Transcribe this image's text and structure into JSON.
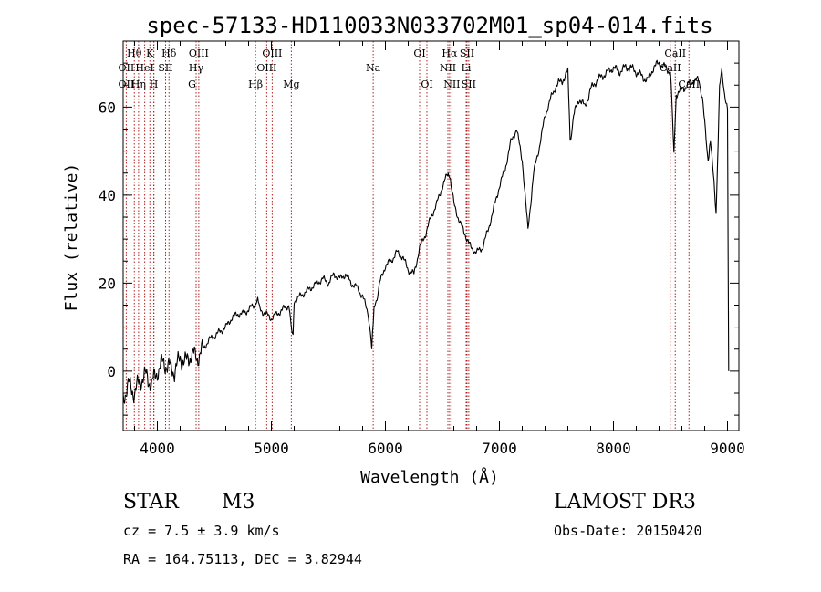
{
  "chart_data": {
    "type": "line",
    "title": "spec-57133-HD110033N033702M01_sp04-014.fits",
    "xlabel": "Wavelength (Å)",
    "ylabel": "Flux (relative)",
    "xlim": [
      3700,
      9100
    ],
    "ylim": [
      -13.5,
      75
    ],
    "xticks": [
      4000,
      5000,
      6000,
      7000,
      8000,
      9000
    ],
    "yticks": [
      0,
      20,
      40,
      60
    ],
    "series": [
      {
        "name": "flux",
        "color": "#000000",
        "x": [
          3700,
          3750,
          3800,
          3850,
          3900,
          3950,
          4000,
          4050,
          4100,
          4150,
          4200,
          4250,
          4300,
          4350,
          4400,
          4450,
          4500,
          4550,
          4600,
          4650,
          4700,
          4750,
          4800,
          4850,
          4880,
          4900,
          4950,
          5000,
          5050,
          5100,
          5150,
          5190,
          5200,
          5250,
          5300,
          5350,
          5400,
          5450,
          5500,
          5550,
          5600,
          5650,
          5700,
          5750,
          5800,
          5850,
          5880,
          5900,
          5920,
          5950,
          6000,
          6050,
          6100,
          6150,
          6200,
          6250,
          6300,
          6350,
          6400,
          6450,
          6500,
          6550,
          6570,
          6600,
          6650,
          6700,
          6750,
          6800,
          6850,
          6900,
          6950,
          7000,
          7050,
          7100,
          7150,
          7200,
          7250,
          7300,
          7350,
          7400,
          7450,
          7500,
          7550,
          7600,
          7620,
          7650,
          7700,
          7750,
          7800,
          7850,
          7900,
          7950,
          8000,
          8050,
          8100,
          8150,
          8200,
          8250,
          8300,
          8350,
          8400,
          8450,
          8500,
          8530,
          8550,
          8600,
          8650,
          8700,
          8750,
          8780,
          8800,
          8830,
          8850,
          8900,
          8930,
          8950,
          8980,
          9000,
          9010
        ],
        "values": [
          -6,
          -3,
          -5,
          -2,
          -1,
          -3,
          0,
          2,
          1,
          0,
          3,
          2,
          4,
          3,
          5,
          7,
          8,
          9,
          10,
          12,
          13,
          13,
          14,
          15,
          16,
          14,
          13,
          12,
          13,
          14,
          15,
          8,
          16,
          17,
          18,
          19,
          20,
          21,
          20,
          22,
          21,
          22,
          20,
          19,
          17,
          13,
          5,
          14,
          16,
          20,
          24,
          25,
          27,
          26,
          23,
          22,
          28,
          31,
          35,
          38,
          42,
          45,
          44,
          38,
          34,
          31,
          28,
          27,
          28,
          32,
          37,
          42,
          46,
          52,
          55,
          48,
          32,
          45,
          51,
          58,
          62,
          65,
          66,
          68,
          52,
          58,
          62,
          60,
          64,
          66,
          67,
          68,
          69,
          68,
          69,
          69,
          68,
          67,
          66,
          69,
          70,
          69,
          68,
          50,
          63,
          64,
          65,
          66,
          66,
          62,
          56,
          48,
          53,
          36,
          64,
          68,
          62,
          60,
          0
        ]
      }
    ],
    "lines": [
      {
        "name": "OII-3727",
        "x": 3727
      },
      {
        "name": "H-theta",
        "x": 3798
      },
      {
        "name": "H-eta",
        "x": 3835
      },
      {
        "name": "HeI",
        "x": 3889
      },
      {
        "name": "K",
        "x": 3934
      },
      {
        "name": "H",
        "x": 3968
      },
      {
        "name": "H-epsilon",
        "x": 3970
      },
      {
        "name": "SII",
        "x": 4072
      },
      {
        "name": "H-delta",
        "x": 4102
      },
      {
        "name": "G",
        "x": 4304
      },
      {
        "name": "H-gamma",
        "x": 4340
      },
      {
        "name": "OIII-4363",
        "x": 4363
      },
      {
        "name": "H-beta",
        "x": 4861
      },
      {
        "name": "OIII-4959",
        "x": 4959
      },
      {
        "name": "OIII-5007",
        "x": 5007
      },
      {
        "name": "Mg",
        "x": 5175
      },
      {
        "name": "Na",
        "x": 5893
      },
      {
        "name": "OI-6300",
        "x": 6300
      },
      {
        "name": "OI-6364",
        "x": 6364
      },
      {
        "name": "NII-6548",
        "x": 6548
      },
      {
        "name": "H-alpha",
        "x": 6563
      },
      {
        "name": "NII-6583",
        "x": 6583
      },
      {
        "name": "Li",
        "x": 6708
      },
      {
        "name": "SII-6716",
        "x": 6716
      },
      {
        "name": "SII-6731",
        "x": 6731
      },
      {
        "name": "CaII-8498",
        "x": 8498
      },
      {
        "name": "CaII-8542",
        "x": 8542
      },
      {
        "name": "CaII-8662",
        "x": 8662
      }
    ],
    "line_labels": [
      {
        "text": "Hθ",
        "x": 3798,
        "row": 0
      },
      {
        "text": "K",
        "x": 3934,
        "row": 0
      },
      {
        "text": "Hδ",
        "x": 4102,
        "row": 0
      },
      {
        "text": "OIII",
        "x": 4363,
        "row": 0
      },
      {
        "text": "OIII",
        "x": 5007,
        "row": 0
      },
      {
        "text": "OI",
        "x": 6300,
        "row": 0
      },
      {
        "text": "Hα",
        "x": 6563,
        "row": 0
      },
      {
        "text": "SII",
        "x": 6716,
        "row": 0
      },
      {
        "text": "CaII",
        "x": 8542,
        "row": 0
      },
      {
        "text": "OII",
        "x": 3727,
        "row": 1
      },
      {
        "text": "HeI",
        "x": 3889,
        "row": 1
      },
      {
        "text": "SII",
        "x": 4072,
        "row": 1
      },
      {
        "text": "Hγ",
        "x": 4340,
        "row": 1
      },
      {
        "text": "OIII",
        "x": 4959,
        "row": 1
      },
      {
        "text": "Na",
        "x": 5893,
        "row": 1
      },
      {
        "text": "NII",
        "x": 6548,
        "row": 1
      },
      {
        "text": "Li",
        "x": 6708,
        "row": 1
      },
      {
        "text": "CaII",
        "x": 8498,
        "row": 1
      },
      {
        "text": "OII",
        "x": 3727,
        "row": 2
      },
      {
        "text": "Hη",
        "x": 3835,
        "row": 2
      },
      {
        "text": "H",
        "x": 3968,
        "row": 2
      },
      {
        "text": "G",
        "x": 4304,
        "row": 2
      },
      {
        "text": "Hβ",
        "x": 4861,
        "row": 2
      },
      {
        "text": "Mg",
        "x": 5175,
        "row": 2
      },
      {
        "text": "OI",
        "x": 6364,
        "row": 2
      },
      {
        "text": "NII",
        "x": 6583,
        "row": 2
      },
      {
        "text": "SII",
        "x": 6731,
        "row": 2
      },
      {
        "text": "CaII",
        "x": 8662,
        "row": 2
      }
    ]
  },
  "info": {
    "object_type": "STAR",
    "subclass": "M3",
    "survey": "LAMOST DR3",
    "redshift": "cz = 7.5 ± 3.9 km/s",
    "obs_date": "Obs-Date: 20150420",
    "coords": "RA = 164.75113, DEC =    3.82944"
  },
  "colors": {
    "axis": "#000000",
    "spectrum": "#000000",
    "line_marker": "#b22222",
    "background": "#ffffff"
  }
}
